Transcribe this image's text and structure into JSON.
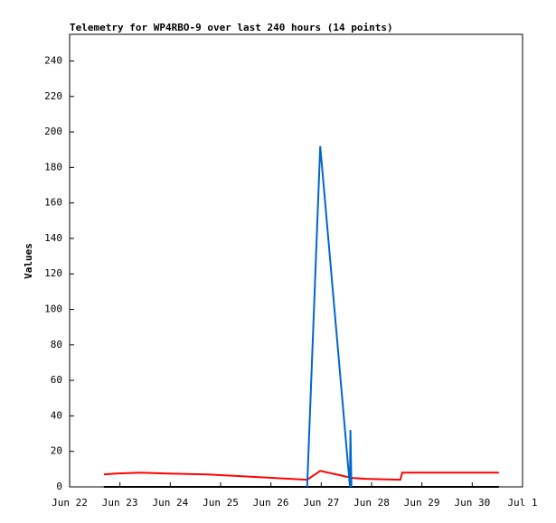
{
  "chart_data": {
    "type": "line",
    "title": "Telemetry for WP4RBO-9 over last 240 hours (14 points)",
    "y_label": "Values",
    "xlim": [
      0,
      9
    ],
    "xticks": [
      {
        "value": 0,
        "label": "Jun 22"
      },
      {
        "value": 1,
        "label": "Jun 23"
      },
      {
        "value": 2,
        "label": "Jun 24"
      },
      {
        "value": 3,
        "label": "Jun 25"
      },
      {
        "value": 4,
        "label": "Jun 26"
      },
      {
        "value": 5,
        "label": "Jun 27"
      },
      {
        "value": 6,
        "label": "Jun 28"
      },
      {
        "value": 7,
        "label": "Jun 29"
      },
      {
        "value": 8,
        "label": "Jun 30"
      },
      {
        "value": 9,
        "label": "Jul 1"
      }
    ],
    "ylim": [
      0,
      255
    ],
    "yticks": [
      0,
      20,
      40,
      60,
      80,
      100,
      120,
      140,
      160,
      180,
      200,
      220,
      240
    ],
    "series": [
      {
        "color": "#000000",
        "x": [
          0.68,
          8.53
        ],
        "values": [
          0,
          0
        ]
      },
      {
        "color": "#ff0000",
        "x": [
          0.68,
          0.92,
          1.4,
          1.94,
          2.75,
          4.72,
          4.98,
          5.62,
          5.89,
          6.57,
          6.61,
          8.53
        ],
        "values": [
          7,
          7.5,
          8,
          7.5,
          7,
          4,
          9,
          5,
          4.5,
          4,
          8,
          8
        ]
      },
      {
        "color": "#0066cc",
        "x": [
          4.72,
          4.98,
          5.57,
          5.58,
          5.6
        ],
        "values": [
          0,
          192,
          0,
          32,
          0
        ]
      }
    ]
  }
}
